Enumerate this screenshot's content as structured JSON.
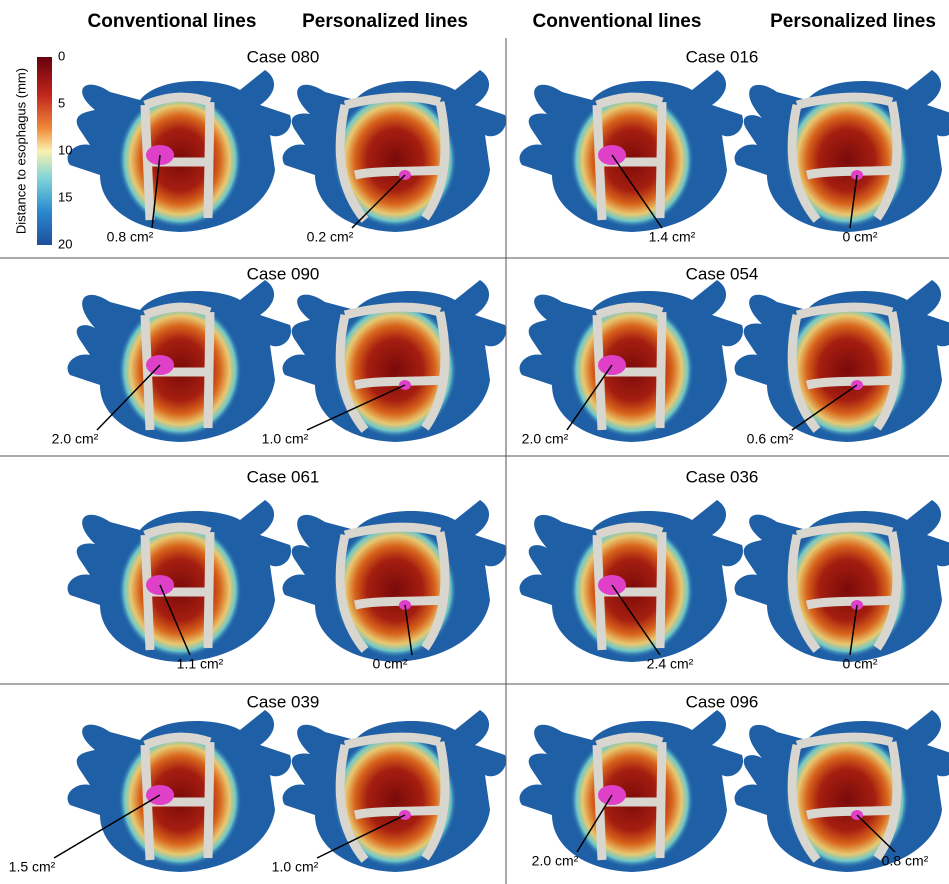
{
  "headers": [
    "Conventional lines",
    "Personalized lines",
    "Conventional lines",
    "Personalized lines"
  ],
  "colorbar": {
    "label": "Distance to esophagus (mm)",
    "ticks": [
      "0",
      "5",
      "10",
      "15",
      "20"
    ]
  },
  "cases": [
    {
      "title": "Case 080",
      "conventional": "0.8 cm²",
      "personalized": "0.2 cm²"
    },
    {
      "title": "Case 016",
      "conventional": "1.4 cm²",
      "personalized": "0 cm²"
    },
    {
      "title": "Case 090",
      "conventional": "2.0 cm²",
      "personalized": "1.0 cm²"
    },
    {
      "title": "Case 054",
      "conventional": "2.0 cm²",
      "personalized": "0.6 cm²"
    },
    {
      "title": "Case 061",
      "conventional": "1.1 cm²",
      "personalized": "0 cm²"
    },
    {
      "title": "Case 036",
      "conventional": "2.4 cm²",
      "personalized": "0 cm²"
    },
    {
      "title": "Case 039",
      "conventional": "1.5 cm²",
      "personalized": "1.0 cm²"
    },
    {
      "title": "Case 096",
      "conventional": "2.0 cm²",
      "personalized": "0.8 cm²"
    }
  ]
}
